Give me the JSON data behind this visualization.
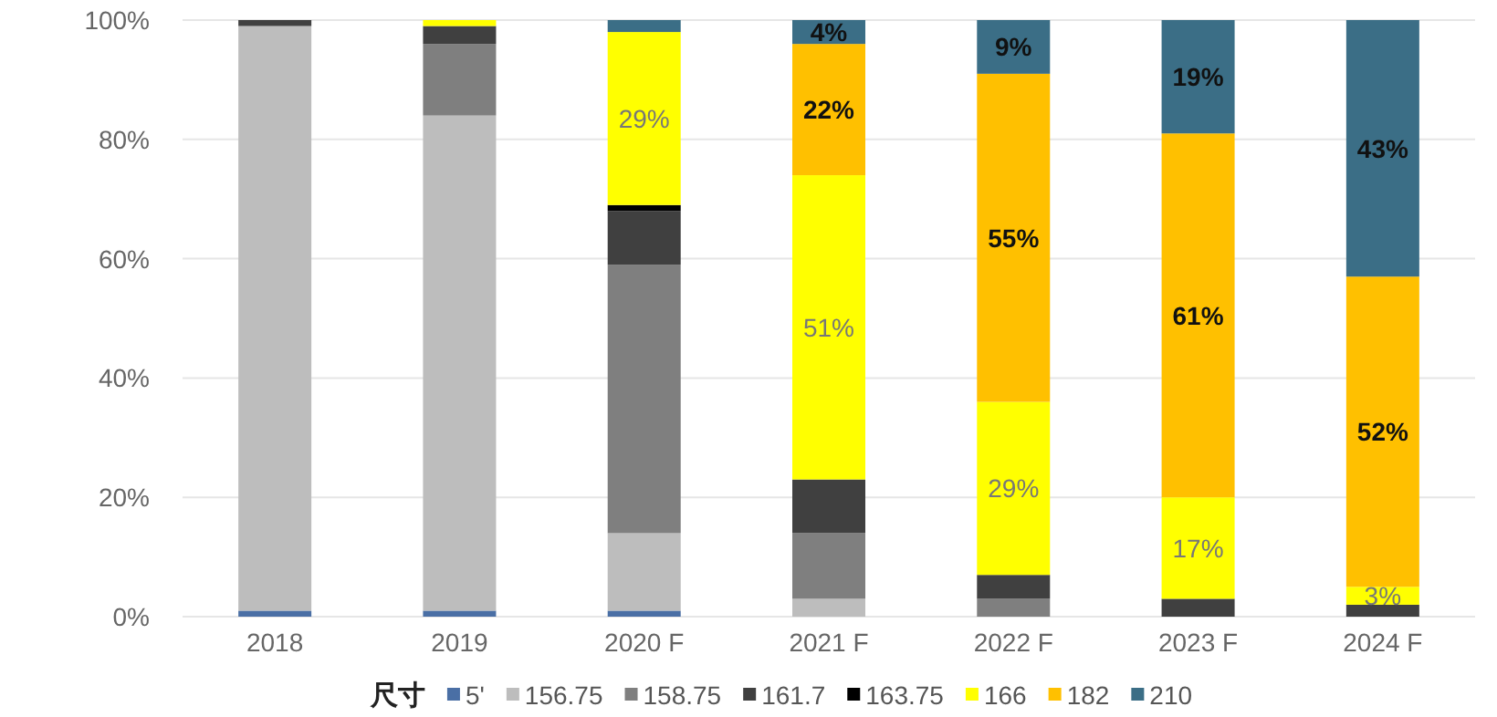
{
  "chart_data": {
    "type": "bar",
    "stacked": true,
    "legend_title": "尺寸",
    "legend": "bottom",
    "grid": "y",
    "categories": [
      "2018",
      "2019",
      "2020 F",
      "2021 F",
      "2022 F",
      "2023 F",
      "2024 F"
    ],
    "ylim": [
      0,
      100
    ],
    "yticks": [
      {
        "value": 0,
        "label": "0%"
      },
      {
        "value": 20,
        "label": "20%"
      },
      {
        "value": 40,
        "label": "40%"
      },
      {
        "value": 60,
        "label": "60%"
      },
      {
        "value": 80,
        "label": "80%"
      },
      {
        "value": 100,
        "label": "100%"
      }
    ],
    "series": [
      {
        "name": "5'",
        "color": "#4a6fa5",
        "values": [
          1,
          1,
          1,
          0,
          0,
          0,
          0
        ],
        "value_labels": [
          null,
          null,
          null,
          null,
          null,
          null,
          null
        ]
      },
      {
        "name": "156.75",
        "color": "#bdbdbd",
        "values": [
          98,
          83,
          13,
          3,
          0,
          0,
          0
        ],
        "value_labels": [
          null,
          null,
          null,
          null,
          null,
          null,
          null
        ]
      },
      {
        "name": "158.75",
        "color": "#7f7f7f",
        "values": [
          0,
          12,
          45,
          11,
          3,
          0,
          0
        ],
        "value_labels": [
          null,
          null,
          null,
          null,
          null,
          null,
          null
        ]
      },
      {
        "name": "161.7",
        "color": "#404040",
        "values": [
          1,
          3,
          9,
          9,
          4,
          3,
          2
        ],
        "value_labels": [
          null,
          null,
          null,
          null,
          null,
          null,
          null
        ]
      },
      {
        "name": "163.75",
        "color": "#000000",
        "values": [
          0,
          0,
          1,
          0,
          0,
          0,
          0
        ],
        "value_labels": [
          null,
          null,
          null,
          null,
          null,
          null,
          null
        ]
      },
      {
        "name": "166",
        "color": "#ffff00",
        "values": [
          0,
          1,
          29,
          51,
          29,
          17,
          3
        ],
        "value_labels": [
          null,
          null,
          "29%",
          "51%",
          "29%",
          "17%",
          "3%"
        ]
      },
      {
        "name": "182",
        "color": "#ffc000",
        "values": [
          0,
          0,
          0,
          22,
          55,
          61,
          52
        ],
        "value_labels": [
          null,
          null,
          null,
          "22%",
          "55%",
          "61%",
          "52%"
        ]
      },
      {
        "name": "210",
        "color": "#3b6e86",
        "values": [
          0,
          0,
          2,
          4,
          9,
          19,
          43
        ],
        "value_labels": [
          null,
          null,
          null,
          "4%",
          "9%",
          "19%",
          "43%"
        ]
      }
    ]
  }
}
